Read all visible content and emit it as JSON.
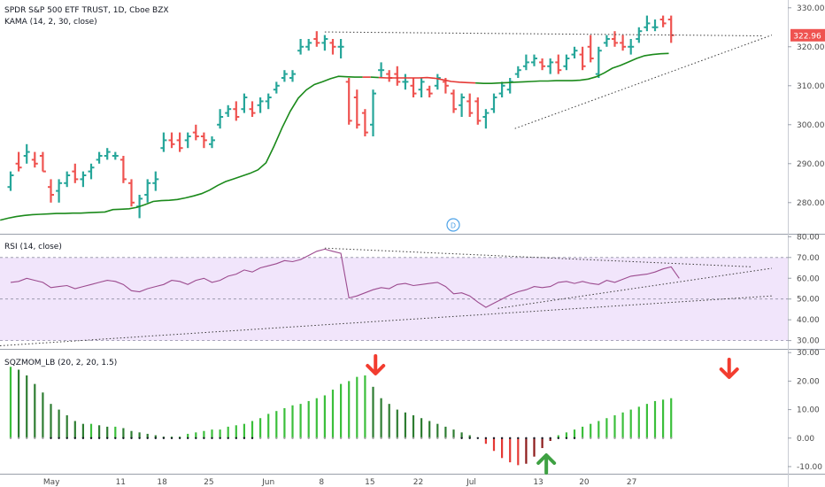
{
  "header": {
    "symbol_line": "SPDR S&P 500 ETF TRUST, 1D, Cboe BZX",
    "kama_label": "KAMA (14, 2, 30, close)",
    "rsi_label": "RSI (14, close)",
    "sqz_label": "SQZMOM_LB (20, 2, 20, 1.5)",
    "dividend_marker": "D",
    "last_price_label": "322.96"
  },
  "colors": {
    "up": "#26a69a",
    "down": "#ef5350",
    "kama_above": "#e53935",
    "kama_below": "#1b8a1b",
    "rsi_line": "#9c4b8f",
    "rsi_band": "#efe0fa",
    "sqz_up_strong": "#3bbf3b",
    "sqz_up_weak": "#2e7d32",
    "sqz_dn_strong": "#e53935",
    "sqz_dn_weak": "#8e1b1b",
    "arrow_red": "#f23c2f",
    "arrow_green": "#3fa143"
  },
  "chart_data": [
    {
      "type": "ohlc",
      "title": "SPDR S&P 500 ETF TRUST, 1D, Cboe BZX",
      "ylim": [
        272,
        332
      ],
      "y_ticks": [
        "330.00",
        "320.00",
        "310.00",
        "300.00",
        "290.00",
        "280.00"
      ],
      "x_ticks": [
        "May",
        "11",
        "18",
        "25",
        "Jun",
        "8",
        "15",
        "22",
        "Jul",
        "13",
        "20",
        "27"
      ],
      "series": [
        {
          "name": "SPY",
          "ohlc": [
            [
              284,
              288,
              283,
              287
            ],
            [
              290,
              293,
              288,
              289
            ],
            [
              292,
              295,
              290,
              293
            ],
            [
              291,
              293,
              289,
              290
            ],
            [
              292,
              293,
              288,
              288
            ],
            [
              284,
              286,
              280,
              282
            ],
            [
              283,
              286,
              280,
              285
            ],
            [
              285,
              288,
              284,
              287
            ],
            [
              288,
              290,
              285,
              286
            ],
            [
              286,
              288,
              284,
              287
            ],
            [
              288,
              290,
              286,
              289
            ],
            [
              291,
              293,
              290,
              292
            ],
            [
              292,
              294,
              291,
              293
            ],
            [
              292,
              293,
              291,
              292
            ],
            [
              291,
              292,
              285,
              286
            ],
            [
              285,
              286,
              279,
              280
            ],
            [
              279,
              282,
              276,
              281
            ],
            [
              282,
              286,
              280,
              285
            ],
            [
              285,
              288,
              283,
              286
            ],
            [
              294,
              298,
              293,
              296
            ],
            [
              296,
              298,
              294,
              295
            ],
            [
              296,
              298,
              293,
              294
            ],
            [
              296,
              298,
              294,
              297
            ],
            [
              298,
              300,
              296,
              297
            ],
            [
              297,
              298,
              294,
              296
            ],
            [
              295,
              297,
              294,
              296
            ],
            [
              300,
              304,
              299,
              302
            ],
            [
              303,
              305,
              302,
              304
            ],
            [
              304,
              306,
              301,
              302
            ],
            [
              304,
              308,
              303,
              307
            ],
            [
              304,
              306,
              302,
              303
            ],
            [
              305,
              307,
              303,
              306
            ],
            [
              306,
              308,
              304,
              307
            ],
            [
              309,
              311,
              308,
              310
            ],
            [
              312,
              314,
              311,
              313
            ],
            [
              312,
              314,
              311,
              313
            ],
            [
              319,
              322,
              318,
              320
            ],
            [
              320,
              322,
              319,
              321
            ],
            [
              322,
              324,
              320,
              321
            ],
            [
              321,
              323,
              319,
              322
            ],
            [
              321,
              322,
              318,
              320
            ],
            [
              320,
              322,
              317,
              320
            ],
            [
              311,
              312,
              300,
              301
            ],
            [
              307,
              309,
              299,
              300
            ],
            [
              303,
              304,
              297,
              298
            ],
            [
              300,
              309,
              297,
              308
            ],
            [
              314,
              316,
              312,
              314
            ],
            [
              313,
              314,
              311,
              312
            ],
            [
              313,
              315,
              310,
              311
            ],
            [
              311,
              313,
              309,
              311
            ],
            [
              310,
              312,
              307,
              308
            ],
            [
              309,
              312,
              307,
              311
            ],
            [
              309,
              310,
              307,
              308
            ],
            [
              310,
              313,
              309,
              312
            ],
            [
              311,
              312,
              308,
              310
            ],
            [
              308,
              309,
              303,
              304
            ],
            [
              305,
              308,
              302,
              307
            ],
            [
              306,
              308,
              302,
              303
            ],
            [
              306,
              307,
              300,
              301
            ],
            [
              302,
              304,
              299,
              303
            ],
            [
              304,
              308,
              303,
              307
            ],
            [
              308,
              311,
              307,
              310
            ],
            [
              309,
              312,
              308,
              311
            ],
            [
              313,
              315,
              312,
              314
            ],
            [
              315,
              318,
              314,
              316
            ],
            [
              316,
              318,
              315,
              317
            ],
            [
              316,
              317,
              314,
              315
            ],
            [
              315,
              317,
              313,
              316
            ],
            [
              316,
              318,
              313,
              314
            ],
            [
              315,
              318,
              314,
              317
            ],
            [
              318,
              320,
              317,
              319
            ],
            [
              318,
              320,
              314,
              315
            ],
            [
              320,
              323,
              316,
              317
            ],
            [
              313,
              320,
              312,
              319
            ],
            [
              321,
              323,
              320,
              322
            ],
            [
              322,
              324,
              320,
              321
            ],
            [
              321,
              323,
              319,
              320
            ],
            [
              320,
              322,
              318,
              320
            ],
            [
              322,
              325,
              321,
              324
            ],
            [
              325,
              328,
              324,
              326
            ],
            [
              325,
              327,
              324,
              325
            ],
            [
              327,
              328,
              325,
              326
            ],
            [
              327,
              328,
              321,
              322.96
            ]
          ]
        },
        {
          "name": "KAMA",
          "values": [
            275.5,
            276.0,
            276.4,
            276.7,
            276.9,
            277.0,
            277.1,
            277.2,
            277.2,
            277.3,
            277.3,
            277.4,
            277.5,
            277.6,
            278.2,
            278.3,
            278.4,
            278.8,
            279.5,
            280.3,
            280.5,
            280.6,
            280.8,
            281.2,
            281.7,
            282.3,
            283.2,
            284.4,
            285.4,
            286.1,
            286.8,
            287.5,
            288.4,
            290.2,
            294.5,
            299.2,
            303.4,
            306.8,
            308.9,
            310.3,
            311.0,
            311.8,
            312.4,
            312.3,
            312.2,
            312.2,
            312.2,
            312.1,
            312.0,
            312.0,
            312.0,
            312.0,
            312.0,
            312.1,
            311.9,
            311.5,
            311.1,
            310.9,
            310.8,
            310.7,
            310.6,
            310.6,
            310.7,
            310.8,
            310.9,
            311.0,
            311.1,
            311.2,
            311.2,
            311.3,
            311.3,
            311.3,
            311.4,
            311.7,
            312.3,
            313.3,
            314.5,
            315.2,
            316.1,
            317.0,
            317.7,
            318.0,
            318.2,
            318.3
          ]
        }
      ],
      "annotations": [
        "322.96",
        "D"
      ]
    },
    {
      "type": "line",
      "title": "RSI (14, close)",
      "ylim": [
        26,
        81
      ],
      "y_ticks": [
        "80.00",
        "70.00",
        "60.00",
        "50.00",
        "40.00",
        "30.00"
      ],
      "band": [
        30,
        70
      ],
      "series": [
        {
          "name": "RSI",
          "values": [
            58,
            58.5,
            60,
            59,
            58,
            55.5,
            56,
            56.5,
            55,
            56,
            57,
            58,
            59,
            58.5,
            57,
            54,
            53.5,
            55,
            56,
            57,
            59,
            58.5,
            57,
            59,
            60,
            58,
            59,
            61,
            62,
            64,
            63,
            65,
            66,
            67,
            68.5,
            68,
            69,
            71,
            73,
            74,
            73,
            72,
            50.5,
            51.5,
            53,
            54.5,
            55.5,
            55,
            57,
            57.5,
            56.5,
            57,
            57.5,
            58,
            56,
            52.5,
            53,
            51.5,
            48.5,
            46,
            48,
            50,
            52,
            53.5,
            54.5,
            56,
            55.5,
            56,
            58,
            58.5,
            57.5,
            58.5,
            57.5,
            57,
            59,
            58,
            59.5,
            61,
            61.5,
            62,
            63,
            64.5,
            65.5,
            60
          ]
        }
      ]
    },
    {
      "type": "bar",
      "title": "SQZMOM_LB (20, 2, 20, 1.5)",
      "ylim": [
        -12.5,
        31
      ],
      "y_ticks": [
        "30.00",
        "20.00",
        "10.00",
        "0.00",
        "-10.00"
      ],
      "series": [
        {
          "name": "SQZMOM",
          "values": [
            25,
            24,
            22,
            19,
            16,
            12,
            10,
            8,
            6,
            5,
            5,
            4.5,
            4,
            4,
            3.5,
            2.5,
            2,
            1.5,
            1,
            0.5,
            0.5,
            0.5,
            1.5,
            2,
            2.5,
            3,
            3,
            4,
            4.5,
            5,
            6,
            7,
            8.5,
            9.5,
            10.5,
            11.5,
            12,
            13,
            14,
            15,
            17,
            19,
            20,
            21.5,
            22,
            18,
            14,
            12,
            10,
            9,
            8,
            7,
            6,
            5,
            4,
            3,
            2,
            1,
            0,
            -2,
            -4.5,
            -7,
            -8.5,
            -9.5,
            -9,
            -6.5,
            -3.5,
            -1,
            1,
            2,
            3,
            4,
            5,
            6,
            7,
            8,
            9,
            10,
            11,
            12,
            13,
            13.5,
            14
          ]
        }
      ],
      "annotations": [
        "sell-arrow",
        "sell-arrow",
        "buy-arrow"
      ]
    }
  ]
}
